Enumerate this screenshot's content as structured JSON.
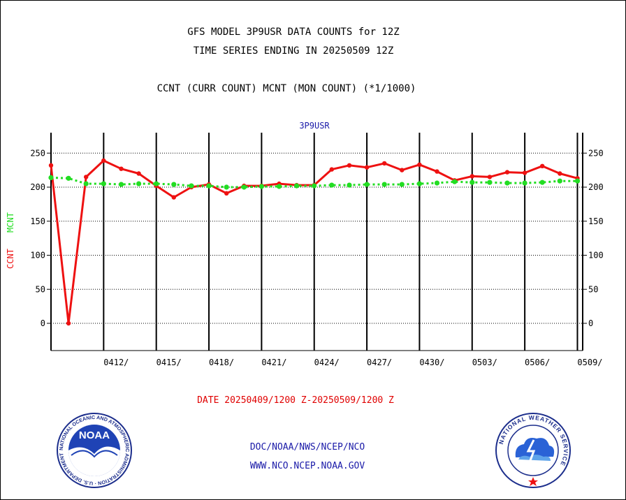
{
  "header": {
    "title_line1": "GFS MODEL 3P9USR DATA COUNTS for 12Z",
    "title_line2": "TIME SERIES ENDING IN 20250509 12Z",
    "subtitle": "CCNT (CURR COUNT) MCNT (MON COUNT) (*1/1000)"
  },
  "footer": {
    "date_range": "DATE 20250409/1200 Z-20250509/1200 Z",
    "link1": "DOC/NOAA/NWS/NCEP/NCO",
    "link2": "WWW.NCO.NCEP.NOAA.GOV"
  },
  "logos": {
    "noaa_text": "NOAA",
    "noaa_ring": "NATIONAL OCEANIC AND ATMOSPHERIC ADMINISTRATION · U.S. DEPARTMENT OF COMMERCE ·",
    "nws_ring": "NATIONAL WEATHER SERVICE"
  },
  "chart_data": {
    "type": "line",
    "title": "3P9USR",
    "ylabel_ccnt": "CCNT",
    "ylabel_mcnt": "MCNT",
    "ylim": [
      -40,
      280
    ],
    "yticks": [
      0,
      50,
      100,
      150,
      200,
      250
    ],
    "xlim": [
      0,
      30.3
    ],
    "x_tick_labels": [
      {
        "x": 3,
        "label": "0412/"
      },
      {
        "x": 6,
        "label": "0415/"
      },
      {
        "x": 9,
        "label": "0418/"
      },
      {
        "x": 12,
        "label": "0421/"
      },
      {
        "x": 15,
        "label": "0424/"
      },
      {
        "x": 18,
        "label": "0427/"
      },
      {
        "x": 21,
        "label": "0430/"
      },
      {
        "x": 24,
        "label": "0503/"
      },
      {
        "x": 27,
        "label": "0506/"
      },
      {
        "x": 30,
        "label": "0509/"
      }
    ],
    "series": [
      {
        "name": "CCNT",
        "color": "#ee1111",
        "values": [
          232,
          0,
          215,
          239,
          227,
          220,
          202,
          185,
          200,
          204,
          191,
          202,
          202,
          205,
          203,
          203,
          226,
          232,
          229,
          235,
          225,
          233,
          223,
          210,
          216,
          215,
          222,
          221,
          231,
          220,
          213
        ]
      },
      {
        "name": "MCNT",
        "color": "#22dd22",
        "values": [
          214,
          213,
          205,
          205,
          204,
          205,
          205,
          204,
          202,
          202,
          200,
          200,
          201,
          201,
          202,
          202,
          203,
          203,
          204,
          204,
          204,
          205,
          206,
          208,
          207,
          207,
          206,
          206,
          207,
          209,
          209
        ]
      }
    ],
    "colors": {
      "ccnt": "#ee1111",
      "mcnt": "#22dd22",
      "title": "#1a1aa8",
      "axis": "#000000"
    }
  }
}
